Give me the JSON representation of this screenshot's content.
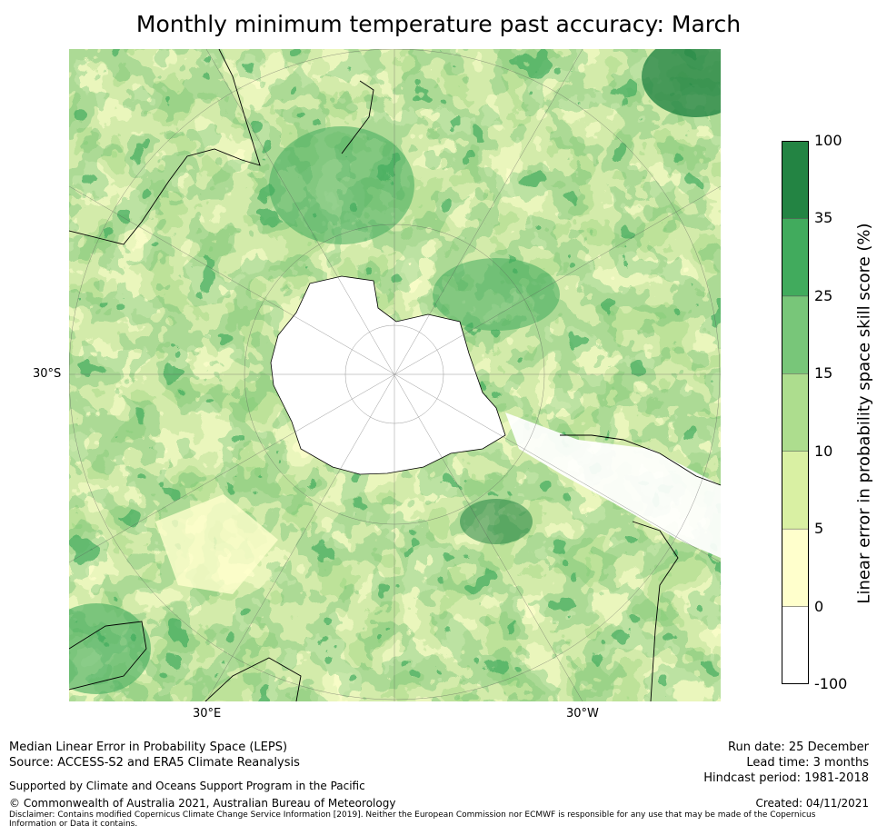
{
  "title": "Monthly minimum temperature past accuracy: March",
  "map": {
    "projection": "south-polar-stereographic",
    "labels": {
      "lat_left": "30°S",
      "lon_left": "30°E",
      "lon_right": "30°W"
    }
  },
  "colorbar": {
    "label": "Linear error in probability space skill score (%)",
    "bins": [
      {
        "low": "-100",
        "high": "0",
        "color": "#ffffff"
      },
      {
        "low": "0",
        "high": "5",
        "color": "#ffffcc"
      },
      {
        "low": "5",
        "high": "10",
        "color": "#d9f0a3"
      },
      {
        "low": "10",
        "high": "15",
        "color": "#addd8e"
      },
      {
        "low": "15",
        "high": "25",
        "color": "#78c679"
      },
      {
        "low": "25",
        "high": "35",
        "color": "#41ab5d"
      },
      {
        "low": "35",
        "high": "100",
        "color": "#238443"
      }
    ],
    "ticks": [
      "-100",
      "0",
      "5",
      "10",
      "15",
      "25",
      "35",
      "100"
    ]
  },
  "footer": {
    "method": "Median Linear Error in Probability Space (LEPS)",
    "source": "Source: ACCESS-S2 and ERA5 Climate Reanalysis",
    "support": "Supported by Climate and Oceans Support Program in the Pacific",
    "copyright": "© Commonwealth of Australia 2021, Australian Bureau of Meteorology",
    "run_date": "Run date: 25 December",
    "lead_time": "Lead time: 3 months",
    "hindcast": "Hindcast period: 1981-2018",
    "created": "Created: 04/11/2021",
    "disclaimer": "Disclaimer: Contains modified Copernicus Climate Change Service Information [2019]. Neither the European Commission nor ECMWF is responsible for any use that may be made of the Copernicus Information or Data it contains."
  }
}
